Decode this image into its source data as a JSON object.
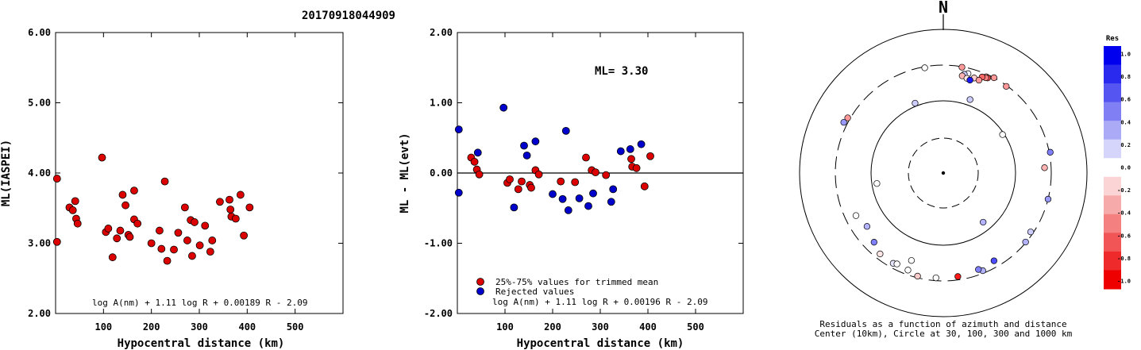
{
  "page_title": "20170918044909",
  "chart_data": [
    {
      "type": "scatter",
      "id": "ml-vs-distance",
      "xlabel": "Hypocentral distance (km)",
      "ylabel": "ML(IASPEI)",
      "xlim": [
        0,
        600
      ],
      "ylim": [
        2,
        6
      ],
      "xticks": [
        100,
        200,
        300,
        400,
        500
      ],
      "xtick_labels": [
        "100",
        "200",
        "300",
        "400",
        "500"
      ],
      "yticks": [
        2,
        3,
        4,
        5,
        6
      ],
      "ytick_labels": [
        "2.00",
        "3.00",
        "4.00",
        "5.00",
        "6.00"
      ],
      "formula": "log A(nm) + 1.11 log R + 0.00189 R - 2.09",
      "point_color": "#dd0000",
      "points": [
        [
          3,
          3.92
        ],
        [
          3,
          3.02
        ],
        [
          29,
          3.51
        ],
        [
          36,
          3.47
        ],
        [
          41,
          3.6
        ],
        [
          43,
          3.35
        ],
        [
          46,
          3.28
        ],
        [
          97,
          4.22
        ],
        [
          105,
          3.16
        ],
        [
          110,
          3.21
        ],
        [
          119,
          2.8
        ],
        [
          128,
          3.07
        ],
        [
          135,
          3.18
        ],
        [
          140,
          3.69
        ],
        [
          146,
          3.54
        ],
        [
          152,
          3.12
        ],
        [
          155,
          3.09
        ],
        [
          164,
          3.75
        ],
        [
          164,
          3.34
        ],
        [
          171,
          3.28
        ],
        [
          200,
          3.0
        ],
        [
          217,
          3.18
        ],
        [
          221,
          2.92
        ],
        [
          228,
          3.88
        ],
        [
          233,
          2.75
        ],
        [
          247,
          2.91
        ],
        [
          256,
          3.15
        ],
        [
          270,
          3.51
        ],
        [
          275,
          3.04
        ],
        [
          282,
          3.33
        ],
        [
          285,
          2.82
        ],
        [
          290,
          3.3
        ],
        [
          301,
          2.97
        ],
        [
          312,
          3.25
        ],
        [
          323,
          2.88
        ],
        [
          327,
          3.04
        ],
        [
          343,
          3.59
        ],
        [
          363,
          3.62
        ],
        [
          365,
          3.48
        ],
        [
          367,
          3.38
        ],
        [
          376,
          3.35
        ],
        [
          386,
          3.69
        ],
        [
          393,
          3.11
        ],
        [
          405,
          3.51
        ]
      ]
    },
    {
      "type": "scatter",
      "id": "ml-residual-vs-distance",
      "xlabel": "Hypocentral distance (km)",
      "ylabel": "ML - ML(evt)",
      "xlim": [
        0,
        600
      ],
      "ylim": [
        -2,
        2
      ],
      "xticks": [
        100,
        200,
        300,
        400,
        500
      ],
      "xtick_labels": [
        "100",
        "200",
        "300",
        "400",
        "500"
      ],
      "yticks": [
        -2,
        -1,
        0,
        1,
        2
      ],
      "ytick_labels": [
        "-2.00",
        "-1.00",
        "0.00",
        "1.00",
        "2.00"
      ],
      "ml_label": "ML= 3.30",
      "formula": "log A(nm) + 1.11 log R + 0.00196 R - 2.09",
      "legend": [
        {
          "label": "25%-75% values for trimmed mean",
          "color": "#dd0000"
        },
        {
          "label": "Rejected values",
          "color": "#0000cc"
        }
      ],
      "trimmed_color": "#dd0000",
      "rejected_color": "#0000cc",
      "trimmed_points": [
        [
          29,
          0.22
        ],
        [
          36,
          0.16
        ],
        [
          41,
          0.05
        ],
        [
          46,
          -0.02
        ],
        [
          105,
          -0.14
        ],
        [
          110,
          -0.09
        ],
        [
          128,
          -0.23
        ],
        [
          135,
          -0.12
        ],
        [
          152,
          -0.17
        ],
        [
          155,
          -0.21
        ],
        [
          164,
          0.04
        ],
        [
          171,
          -0.02
        ],
        [
          217,
          -0.12
        ],
        [
          247,
          -0.13
        ],
        [
          270,
          0.22
        ],
        [
          282,
          0.04
        ],
        [
          290,
          0.01
        ],
        [
          312,
          -0.03
        ],
        [
          365,
          0.2
        ],
        [
          367,
          0.09
        ],
        [
          376,
          0.07
        ],
        [
          393,
          -0.19
        ],
        [
          405,
          0.24
        ]
      ],
      "rejected_points": [
        [
          3,
          0.62
        ],
        [
          3,
          -0.28
        ],
        [
          43,
          0.29
        ],
        [
          97,
          0.93
        ],
        [
          119,
          -0.49
        ],
        [
          140,
          0.39
        ],
        [
          146,
          0.25
        ],
        [
          164,
          0.45
        ],
        [
          200,
          -0.3
        ],
        [
          221,
          -0.37
        ],
        [
          228,
          0.6
        ],
        [
          233,
          -0.53
        ],
        [
          256,
          -0.36
        ],
        [
          275,
          -0.47
        ],
        [
          285,
          -0.29
        ],
        [
          323,
          -0.41
        ],
        [
          327,
          -0.23
        ],
        [
          343,
          0.31
        ],
        [
          363,
          0.34
        ],
        [
          386,
          0.41
        ]
      ]
    },
    {
      "type": "polar-scatter",
      "id": "residual-azimuth-map",
      "north_label": "N",
      "caption_line1": "Residuals as a function of azimuth and distance",
      "caption_line2": "Center (10km), Circle at 30, 100, 300 and 1000 km",
      "rings": [
        {
          "label_km": 30,
          "style": "dashed"
        },
        {
          "label_km": 100,
          "style": "solid"
        },
        {
          "label_km": 300,
          "style": "dashed"
        },
        {
          "label_km": 1000,
          "style": "solid"
        }
      ],
      "colorbar": {
        "title": "Res",
        "tick_labels": [
          "1.0",
          "0.8",
          "0.6",
          "0.4",
          "0.2",
          "0.0",
          "-0.2",
          "-0.4",
          "-0.6",
          "-0.8",
          "-1.0"
        ],
        "colors": [
          "#0000ee",
          "#2a2aef",
          "#5555f1",
          "#8080f4",
          "#aaaaf7",
          "#d5d5fb",
          "#ffffff",
          "#fbd5d5",
          "#f7aaaa",
          "#f48080",
          "#f15555",
          "#ef2a2a",
          "#ee0000"
        ]
      },
      "stations": [
        {
          "az": 10,
          "dist": 295,
          "res": -0.4
        },
        {
          "az": 28,
          "dist": 300,
          "res": -0.4
        },
        {
          "az": 24,
          "dist": 277,
          "res": -0.3
        },
        {
          "az": 25,
          "dist": 273,
          "res": -0.7
        },
        {
          "az": 24,
          "dist": 268,
          "res": -0.5
        },
        {
          "az": 22,
          "dist": 262,
          "res": -0.6
        },
        {
          "az": 36,
          "dist": 292,
          "res": -0.4
        },
        {
          "az": 14,
          "dist": 253,
          "res": 0.05
        },
        {
          "az": 12,
          "dist": 242,
          "res": 0.2
        },
        {
          "az": 11,
          "dist": 228,
          "res": -0.3
        },
        {
          "az": 18,
          "dist": 234,
          "res": -0.2
        },
        {
          "az": 14,
          "dist": 218,
          "res": -0.1
        },
        {
          "az": 21,
          "dist": 231,
          "res": -0.4
        },
        {
          "az": 16,
          "dist": 212,
          "res": 0.9
        },
        {
          "az": 350,
          "dist": 290,
          "res": 0.0
        },
        {
          "az": 300,
          "dist": 325,
          "res": -0.4
        },
        {
          "az": 297,
          "dist": 340,
          "res": 0.4
        },
        {
          "az": 87,
          "dist": 245,
          "res": -0.3
        },
        {
          "az": 79,
          "dist": 310,
          "res": 0.5
        },
        {
          "az": 104,
          "dist": 300,
          "res": 0.4
        },
        {
          "az": 130,
          "dist": 295,
          "res": 0.3
        },
        {
          "az": 124,
          "dist": 277,
          "res": 0.2
        },
        {
          "az": 150,
          "dist": 245,
          "res": 0.7
        },
        {
          "az": 158,
          "dist": 277,
          "res": 0.3
        },
        {
          "az": 184,
          "dist": 275,
          "res": 0.0
        },
        {
          "az": 172,
          "dist": 270,
          "res": -0.9
        },
        {
          "az": 160,
          "dist": 255,
          "res": 0.5
        },
        {
          "az": 200,
          "dist": 260,
          "res": 0.0
        },
        {
          "az": 194,
          "dist": 285,
          "res": -0.2
        },
        {
          "az": 209,
          "dist": 260,
          "res": 0.1
        },
        {
          "az": 207,
          "dist": 250,
          "res": 0.0
        },
        {
          "az": 218,
          "dist": 255,
          "res": -0.1
        },
        {
          "az": 225,
          "dist": 220,
          "res": 0.5
        },
        {
          "az": 244,
          "dist": 215,
          "res": 0.0
        },
        {
          "az": 235,
          "dist": 190,
          "res": 0.3
        },
        {
          "az": 200,
          "dist": 190,
          "res": 0.0
        },
        {
          "az": 20,
          "dist": 120,
          "res": 0.2
        },
        {
          "az": 57,
          "dist": 95,
          "res": 0.0
        },
        {
          "az": 338,
          "dist": 110,
          "res": 0.2
        },
        {
          "az": 261,
          "dist": 85,
          "res": 0.0
        },
        {
          "az": 141,
          "dist": 75,
          "res": 0.3
        }
      ]
    }
  ]
}
